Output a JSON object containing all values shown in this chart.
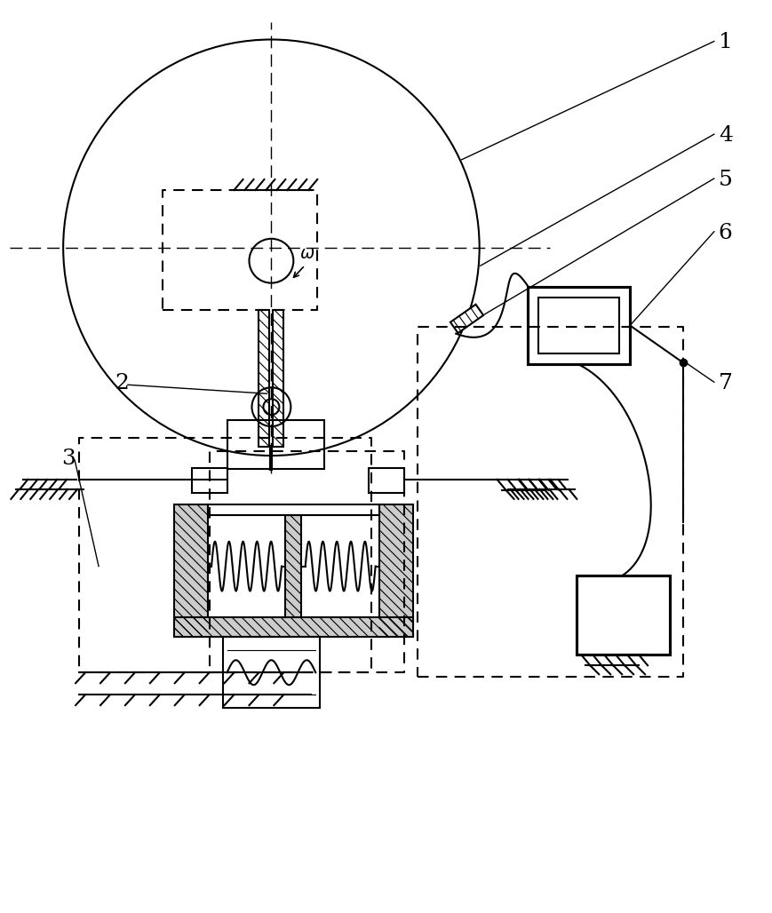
{
  "bg_color": "#ffffff",
  "line_color": "#000000",
  "fig_width": 8.7,
  "fig_height": 10.28,
  "dpi": 100
}
